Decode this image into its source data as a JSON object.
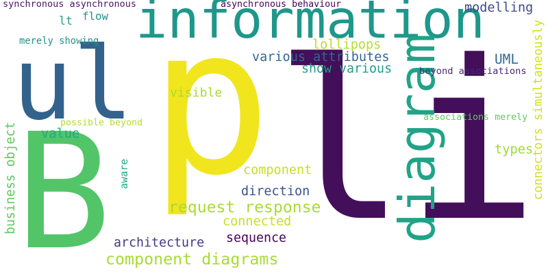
{
  "words": [
    {
      "key": "li",
      "text": "li",
      "color": "#440f5a"
    },
    {
      "key": "p",
      "text": "p",
      "color": "#f1e51d"
    },
    {
      "key": "b",
      "text": "B",
      "color": "#52c569"
    },
    {
      "key": "ul",
      "text": "ul",
      "color": "#33638d"
    },
    {
      "key": "information",
      "text": "information",
      "color": "#1f978b"
    },
    {
      "key": "diagram",
      "text": "diagram",
      "color": "#20a386"
    },
    {
      "key": "component_diagrams",
      "text": "component diagrams",
      "color": "#a8db34"
    },
    {
      "key": "request_response",
      "text": "request response",
      "color": "#a8db34"
    },
    {
      "key": "various_attributes",
      "text": "various attributes",
      "color": "#31688e"
    },
    {
      "key": "show_various",
      "text": "show various",
      "color": "#1f9e89"
    },
    {
      "key": "lollipops",
      "text": "lollipops",
      "color": "#b5de2b"
    },
    {
      "key": "modelling",
      "text": "modelling",
      "color": "#3e4a89"
    },
    {
      "key": "uml",
      "text": "UML",
      "color": "#31688e"
    },
    {
      "key": "beyond_associations",
      "text": "beyond associations",
      "color": "#482878"
    },
    {
      "key": "associations_merely",
      "text": "associations merely",
      "color": "#5ec962"
    },
    {
      "key": "synchronous_asynchronous",
      "text": "synchronous asynchronous",
      "color": "#481467"
    },
    {
      "key": "asynchronous_behaviour",
      "text": "asynchronous behaviour",
      "color": "#440154"
    },
    {
      "key": "merely_showing",
      "text": "merely showing",
      "color": "#21918c"
    },
    {
      "key": "flow",
      "text": "flow",
      "color": "#21918c"
    },
    {
      "key": "lt",
      "text": "lt",
      "color": "#2a9a8a"
    },
    {
      "key": "visible",
      "text": "visible",
      "color": "#a8db34"
    },
    {
      "key": "possible_beyond",
      "text": "possible beyond",
      "color": "#b5de2b"
    },
    {
      "key": "value",
      "text": "value",
      "color": "#22a884"
    },
    {
      "key": "business_object",
      "text": "business object",
      "color": "#5ec962"
    },
    {
      "key": "aware",
      "text": "aware",
      "color": "#22a884"
    },
    {
      "key": "component",
      "text": "component",
      "color": "#c8e020"
    },
    {
      "key": "direction",
      "text": "direction",
      "color": "#3b528b"
    },
    {
      "key": "connected",
      "text": "connected",
      "color": "#c8e020"
    },
    {
      "key": "sequence",
      "text": "sequence",
      "color": "#440154"
    },
    {
      "key": "architecture",
      "text": "architecture",
      "color": "#443983"
    },
    {
      "key": "types",
      "text": "types",
      "color": "#a0da39"
    },
    {
      "key": "connectors_simultaneously",
      "text": "connectors simultaneously",
      "color": "#d2e21b"
    }
  ]
}
